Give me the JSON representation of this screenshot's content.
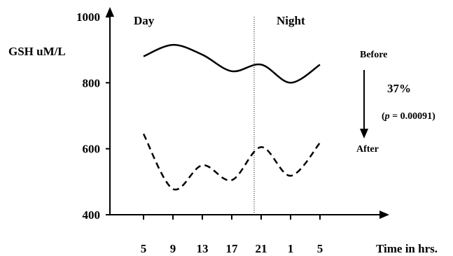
{
  "chart_data": {
    "type": "line",
    "title": "",
    "xlabel": "Time in hrs.",
    "ylabel": "GSH uM/L",
    "x": [
      5,
      9,
      13,
      17,
      21,
      1,
      5
    ],
    "categories": [
      "5",
      "9",
      "13",
      "17",
      "21",
      "1",
      "5"
    ],
    "ylim": [
      400,
      1000
    ],
    "yticks": [
      400,
      600,
      800,
      1000
    ],
    "grid": false,
    "series": [
      {
        "name": "Before",
        "style": "solid",
        "color": "#000000",
        "values": [
          880,
          915,
          885,
          835,
          855,
          800,
          855
        ]
      },
      {
        "name": "After",
        "style": "dashed",
        "color": "#000000",
        "values": [
          645,
          478,
          550,
          505,
          605,
          518,
          618
        ]
      }
    ],
    "annotations": {
      "day": "Day",
      "night": "Night",
      "percent": "37%",
      "p_value_prefix": "(",
      "p_value_var": "p",
      "p_value_rest": " = 0.00091)"
    }
  }
}
